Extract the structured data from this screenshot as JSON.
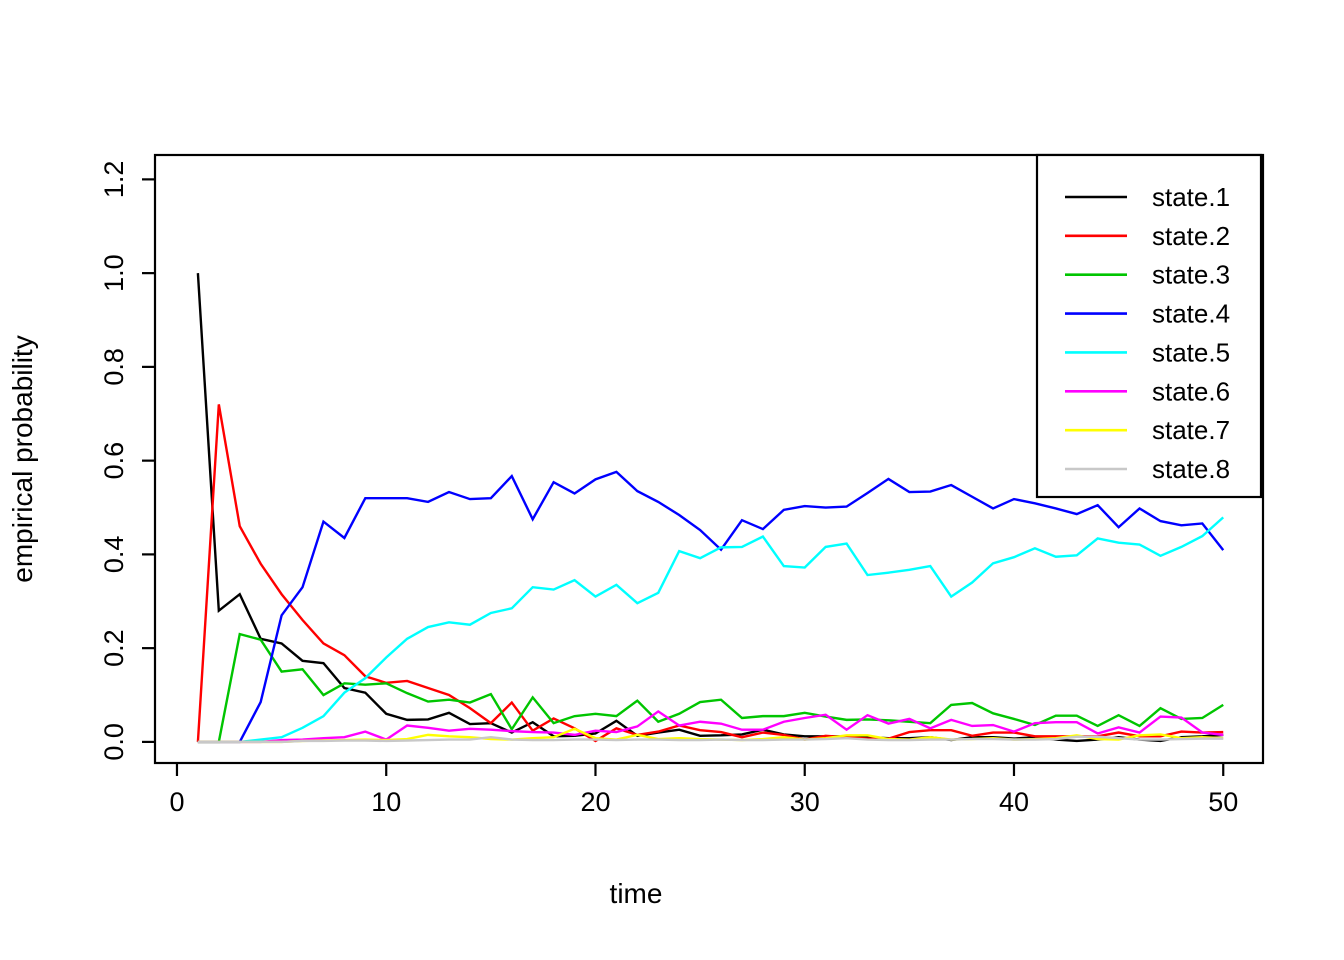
{
  "chart_data": {
    "type": "line",
    "title": "",
    "xlabel": "time",
    "ylabel": "empirical probability",
    "x_start": 1,
    "x": [
      1,
      2,
      3,
      4,
      5,
      6,
      7,
      8,
      9,
      10,
      11,
      12,
      13,
      14,
      15,
      16,
      17,
      18,
      19,
      20,
      21,
      22,
      23,
      24,
      25,
      26,
      27,
      28,
      29,
      30,
      31,
      32,
      33,
      34,
      35,
      36,
      37,
      38,
      39,
      40,
      41,
      42,
      43,
      44,
      45,
      46,
      47,
      48,
      49,
      50
    ],
    "xticks": [
      0,
      10,
      20,
      30,
      40,
      50
    ],
    "yticks": [
      0.0,
      0.2,
      0.4,
      0.6,
      0.8,
      1.0,
      1.2
    ],
    "xlim": [
      -1.05,
      51.9
    ],
    "ylim": [
      -0.045,
      1.252
    ],
    "grid": false,
    "legend_position": "topright",
    "axis_color": "#000000",
    "background": "#ffffff",
    "series": [
      {
        "name": "state.1",
        "color": "#000000",
        "values": [
          1.0,
          0.28,
          0.315,
          0.22,
          0.21,
          0.173,
          0.168,
          0.115,
          0.105,
          0.06,
          0.047,
          0.048,
          0.062,
          0.038,
          0.04,
          0.02,
          0.042,
          0.012,
          0.013,
          0.018,
          0.045,
          0.013,
          0.02,
          0.026,
          0.013,
          0.014,
          0.016,
          0.026,
          0.016,
          0.012,
          0.012,
          0.012,
          0.01,
          0.008,
          0.008,
          0.01,
          0.004,
          0.01,
          0.01,
          0.007,
          0.01,
          0.005,
          0.002,
          0.005,
          0.01,
          0.005,
          0.002,
          0.01,
          0.012,
          0.015
        ]
      },
      {
        "name": "state.2",
        "color": "#ff0000",
        "values": [
          0.0,
          0.72,
          0.46,
          0.38,
          0.315,
          0.26,
          0.21,
          0.185,
          0.14,
          0.126,
          0.13,
          0.115,
          0.1,
          0.072,
          0.04,
          0.084,
          0.024,
          0.05,
          0.029,
          0.002,
          0.029,
          0.015,
          0.022,
          0.035,
          0.025,
          0.021,
          0.01,
          0.02,
          0.015,
          0.005,
          0.013,
          0.01,
          0.007,
          0.007,
          0.021,
          0.025,
          0.025,
          0.013,
          0.02,
          0.02,
          0.012,
          0.012,
          0.012,
          0.012,
          0.02,
          0.012,
          0.012,
          0.022,
          0.02,
          0.021
        ]
      },
      {
        "name": "state.3",
        "color": "#00c500",
        "values": [
          0.0,
          0.0,
          0.23,
          0.218,
          0.15,
          0.155,
          0.1,
          0.125,
          0.122,
          0.125,
          0.104,
          0.086,
          0.09,
          0.084,
          0.102,
          0.027,
          0.095,
          0.04,
          0.055,
          0.06,
          0.055,
          0.088,
          0.043,
          0.06,
          0.085,
          0.09,
          0.051,
          0.055,
          0.055,
          0.062,
          0.054,
          0.047,
          0.048,
          0.046,
          0.043,
          0.04,
          0.079,
          0.083,
          0.061,
          0.049,
          0.036,
          0.056,
          0.056,
          0.034,
          0.057,
          0.034,
          0.072,
          0.049,
          0.051,
          0.079
        ]
      },
      {
        "name": "state.4",
        "color": "#0000ff",
        "values": [
          0.0,
          0.0,
          0.0,
          0.085,
          0.27,
          0.33,
          0.47,
          0.435,
          0.52,
          0.52,
          0.52,
          0.512,
          0.533,
          0.518,
          0.52,
          0.567,
          0.475,
          0.554,
          0.53,
          0.56,
          0.576,
          0.535,
          0.512,
          0.484,
          0.452,
          0.41,
          0.473,
          0.454,
          0.495,
          0.503,
          0.5,
          0.502,
          0.531,
          0.561,
          0.533,
          0.534,
          0.548,
          0.523,
          0.498,
          0.518,
          0.509,
          0.498,
          0.486,
          0.505,
          0.458,
          0.498,
          0.471,
          0.462,
          0.466,
          0.409
        ]
      },
      {
        "name": "state.5",
        "color": "#00ffff",
        "values": [
          0.0,
          0.0,
          0.0,
          0.005,
          0.01,
          0.03,
          0.055,
          0.105,
          0.136,
          0.18,
          0.22,
          0.245,
          0.255,
          0.25,
          0.275,
          0.285,
          0.33,
          0.325,
          0.345,
          0.31,
          0.335,
          0.296,
          0.318,
          0.407,
          0.392,
          0.415,
          0.416,
          0.438,
          0.375,
          0.372,
          0.416,
          0.423,
          0.356,
          0.361,
          0.367,
          0.375,
          0.31,
          0.34,
          0.381,
          0.394,
          0.413,
          0.395,
          0.398,
          0.434,
          0.425,
          0.421,
          0.397,
          0.416,
          0.439,
          0.479
        ]
      },
      {
        "name": "state.6",
        "color": "#ff00ff",
        "values": [
          0.0,
          0.0,
          0.0,
          0.0,
          0.004,
          0.005,
          0.008,
          0.01,
          0.022,
          0.005,
          0.035,
          0.03,
          0.024,
          0.028,
          0.026,
          0.023,
          0.021,
          0.02,
          0.015,
          0.024,
          0.021,
          0.033,
          0.065,
          0.035,
          0.043,
          0.039,
          0.026,
          0.026,
          0.043,
          0.051,
          0.058,
          0.026,
          0.057,
          0.039,
          0.049,
          0.029,
          0.047,
          0.034,
          0.036,
          0.022,
          0.04,
          0.042,
          0.042,
          0.018,
          0.031,
          0.02,
          0.054,
          0.052,
          0.02,
          0.015
        ]
      },
      {
        "name": "state.7",
        "color": "#ffff00",
        "values": [
          0.0,
          0.0,
          0.0,
          0.0,
          0.0,
          0.002,
          0.003,
          0.004,
          0.005,
          0.004,
          0.006,
          0.015,
          0.012,
          0.01,
          0.006,
          0.005,
          0.008,
          0.01,
          0.028,
          0.008,
          0.005,
          0.015,
          0.006,
          0.008,
          0.006,
          0.005,
          0.004,
          0.006,
          0.01,
          0.005,
          0.008,
          0.014,
          0.014,
          0.006,
          0.005,
          0.01,
          0.005,
          0.006,
          0.008,
          0.005,
          0.006,
          0.008,
          0.014,
          0.006,
          0.005,
          0.014,
          0.016,
          0.008,
          0.01,
          0.008
        ]
      },
      {
        "name": "state.8",
        "color": "#c8c8c8",
        "values": [
          0.0,
          0.0,
          0.0,
          0.0,
          0.0,
          0.002,
          0.002,
          0.003,
          0.003,
          0.002,
          0.003,
          0.004,
          0.005,
          0.005,
          0.01,
          0.005,
          0.004,
          0.004,
          0.005,
          0.005,
          0.004,
          0.005,
          0.005,
          0.004,
          0.004,
          0.005,
          0.004,
          0.004,
          0.005,
          0.005,
          0.006,
          0.008,
          0.005,
          0.004,
          0.004,
          0.005,
          0.005,
          0.006,
          0.006,
          0.005,
          0.005,
          0.006,
          0.011,
          0.011,
          0.008,
          0.005,
          0.005,
          0.006,
          0.007,
          0.007
        ]
      }
    ]
  }
}
